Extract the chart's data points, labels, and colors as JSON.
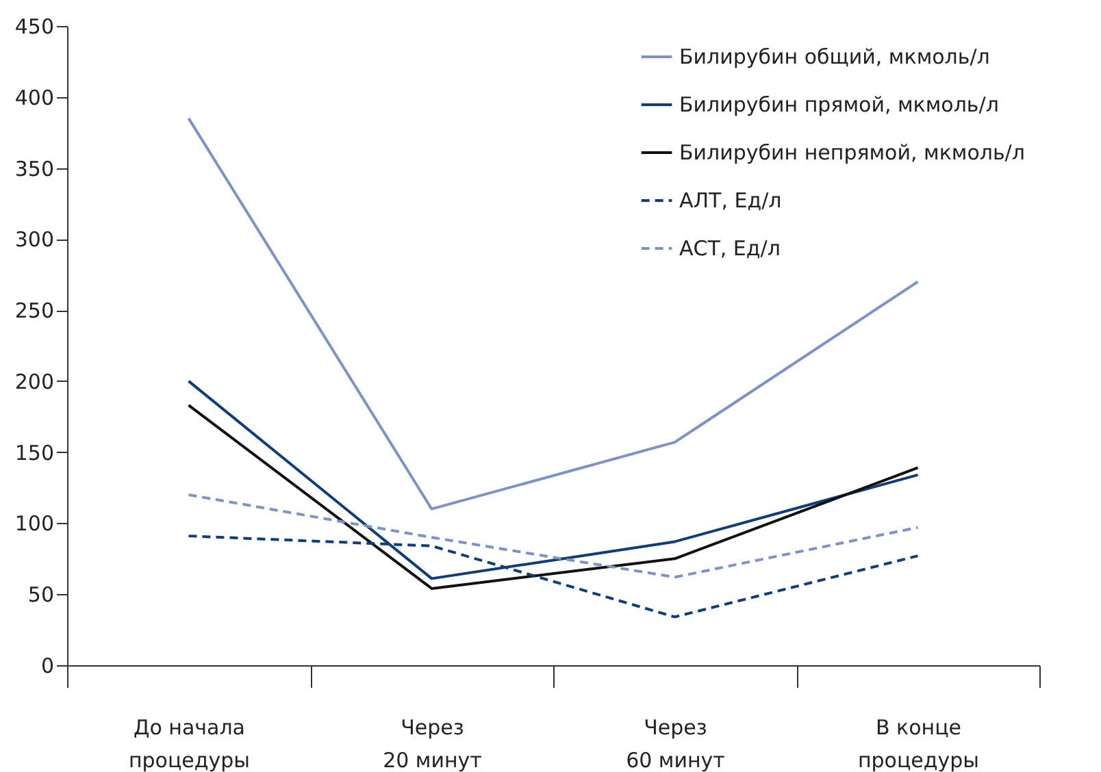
{
  "chart_data": {
    "type": "line",
    "categories": [
      "До начала\nпроцедуры",
      "Через\n20 минут",
      "Через\n60 минут",
      "В конце\nпроцедуры"
    ],
    "ylim": [
      0,
      450
    ],
    "yticks": [
      0,
      50,
      100,
      150,
      200,
      250,
      300,
      350,
      400,
      450
    ],
    "grid": false,
    "legend": "top right",
    "marker": "none",
    "series": [
      {
        "name": "Билирубин общий, мкмоль/л",
        "color": "#7b93c6",
        "line_style": "solid",
        "values": [
          385,
          110,
          157,
          270
        ]
      },
      {
        "name": "Билирубин прямой, мкмоль/л",
        "color": "#0f3d7a",
        "line_style": "solid",
        "values": [
          200,
          61,
          87,
          134
        ]
      },
      {
        "name": "Билирубин непрямой, мкмоль/л",
        "color": "#111111",
        "line_style": "solid",
        "values": [
          183,
          54,
          75,
          139
        ]
      },
      {
        "name": "АЛТ, Ед/л",
        "color": "#0f3d7a",
        "line_style": "dashed",
        "values": [
          91,
          84,
          34,
          77
        ]
      },
      {
        "name": "АСТ, Ед/л",
        "color": "#7b93c6",
        "line_style": "dashed",
        "values": [
          120,
          90,
          62,
          97
        ]
      }
    ]
  }
}
